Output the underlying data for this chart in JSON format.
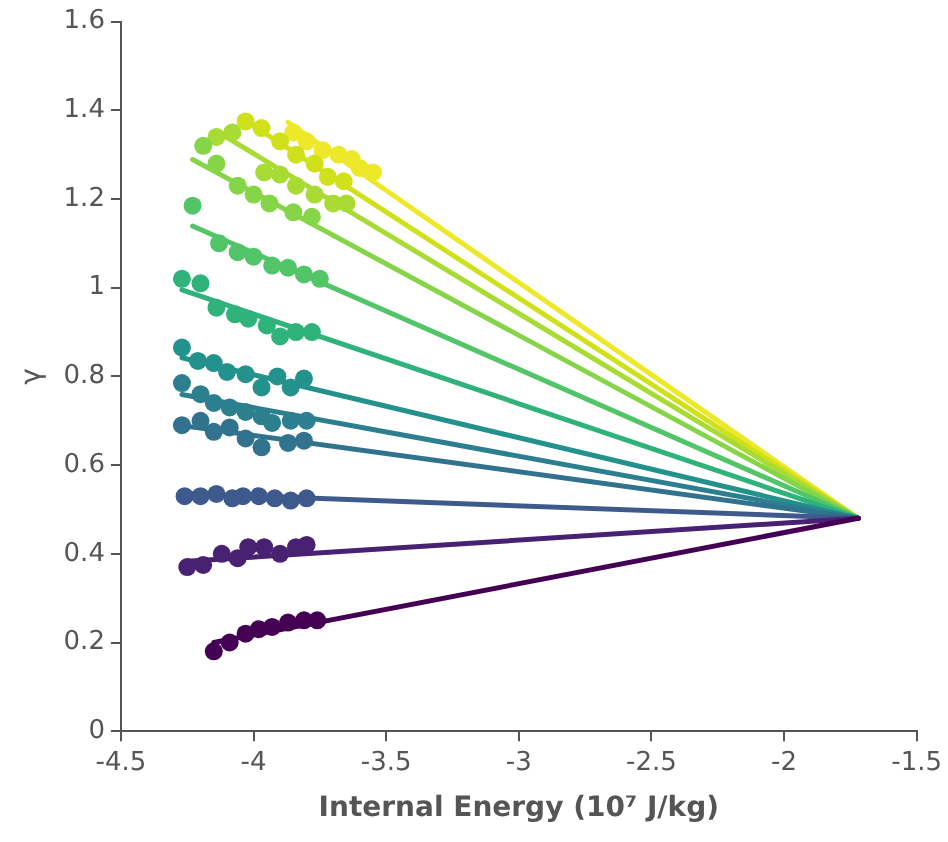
{
  "chart_data": {
    "type": "scatter",
    "xlabel": "Internal Energy (10⁷ J/kg)",
    "ylabel": "γ",
    "xlim": [
      -4.5,
      -1.5
    ],
    "xticks": [
      -4.5,
      -4,
      -3.5,
      -3,
      -2.5,
      -2,
      -1.5
    ],
    "ylim": [
      0,
      1.6
    ],
    "yticks": [
      0,
      0.2,
      0.4,
      0.6,
      0.8,
      1,
      1.2,
      1.4,
      1.6
    ],
    "grid": false,
    "legend": false,
    "marker": "circle",
    "series": [
      {
        "type": "line",
        "marker": "none",
        "color": "#440154",
        "x": [
          -4.15,
          -1.72
        ],
        "values": [
          0.2,
          0.48
        ]
      },
      {
        "type": "line",
        "marker": "none",
        "color": "#482173",
        "x": [
          -4.25,
          -1.72
        ],
        "values": [
          0.383,
          0.48
        ]
      },
      {
        "type": "line",
        "marker": "none",
        "color": "#3e5a8c",
        "x": [
          -4.26,
          -1.72
        ],
        "values": [
          0.536,
          0.48
        ]
      },
      {
        "type": "line",
        "marker": "none",
        "color": "#31738e",
        "x": [
          -4.27,
          -1.72
        ],
        "values": [
          0.689,
          0.48
        ]
      },
      {
        "type": "line",
        "marker": "none",
        "color": "#2b7f8e",
        "x": [
          -4.27,
          -1.72
        ],
        "values": [
          0.759,
          0.48
        ]
      },
      {
        "type": "line",
        "marker": "none",
        "color": "#23918c",
        "x": [
          -4.27,
          -1.72
        ],
        "values": [
          0.842,
          0.48
        ]
      },
      {
        "type": "line",
        "marker": "none",
        "color": "#2fb37b",
        "x": [
          -4.27,
          -1.72
        ],
        "values": [
          0.995,
          0.48
        ]
      },
      {
        "type": "line",
        "marker": "none",
        "color": "#52c569",
        "x": [
          -4.23,
          -1.72
        ],
        "values": [
          1.139,
          0.48
        ]
      },
      {
        "type": "line",
        "marker": "none",
        "color": "#86d549",
        "x": [
          -4.23,
          -1.72
        ],
        "values": [
          1.289,
          0.48
        ]
      },
      {
        "type": "line",
        "marker": "none",
        "color": "#a8db34",
        "x": [
          -4.14,
          -1.72
        ],
        "values": [
          1.353,
          0.48
        ]
      },
      {
        "type": "line",
        "marker": "none",
        "color": "#d0e11c",
        "x": [
          -4.05,
          -1.72
        ],
        "values": [
          1.384,
          0.48
        ]
      },
      {
        "type": "line",
        "marker": "none",
        "color": "#eee82a",
        "x": [
          -3.87,
          -1.72
        ],
        "values": [
          1.373,
          0.48
        ]
      },
      {
        "color": "#440154",
        "x": [
          -4.15,
          -4.09,
          -4.03,
          -3.98,
          -3.93,
          -3.87,
          -3.81,
          -3.76
        ],
        "values": [
          0.18,
          0.2,
          0.22,
          0.23,
          0.235,
          0.245,
          0.25,
          0.25
        ]
      },
      {
        "color": "#482173",
        "x": [
          -4.25,
          -4.19,
          -4.12,
          -4.06,
          -4.02,
          -3.96,
          -3.9,
          -3.84,
          -3.8
        ],
        "values": [
          0.37,
          0.375,
          0.4,
          0.39,
          0.415,
          0.415,
          0.4,
          0.415,
          0.42
        ]
      },
      {
        "color": "#3e5a8c",
        "x": [
          -4.26,
          -4.2,
          -4.14,
          -4.08,
          -4.04,
          -3.98,
          -3.92,
          -3.86,
          -3.8
        ],
        "values": [
          0.53,
          0.53,
          0.535,
          0.525,
          0.53,
          0.53,
          0.525,
          0.52,
          0.525
        ]
      },
      {
        "color": "#31738e",
        "x": [
          -4.27,
          -4.2,
          -4.15,
          -4.09,
          -4.03,
          -3.97,
          -3.87,
          -3.81
        ],
        "values": [
          0.69,
          0.7,
          0.675,
          0.685,
          0.66,
          0.64,
          0.65,
          0.655
        ]
      },
      {
        "color": "#2b7f8e",
        "x": [
          -4.27,
          -4.2,
          -4.15,
          -4.09,
          -4.03,
          -3.97,
          -3.93,
          -3.86,
          -3.8
        ],
        "values": [
          0.785,
          0.76,
          0.74,
          0.73,
          0.72,
          0.71,
          0.695,
          0.7,
          0.7
        ]
      },
      {
        "color": "#23918c",
        "x": [
          -4.27,
          -4.21,
          -4.15,
          -4.1,
          -4.03,
          -3.97,
          -3.91,
          -3.86,
          -3.81
        ],
        "values": [
          0.865,
          0.835,
          0.83,
          0.81,
          0.805,
          0.775,
          0.8,
          0.775,
          0.795
        ]
      },
      {
        "color": "#2fb37b",
        "x": [
          -4.27,
          -4.2,
          -4.14,
          -4.07,
          -4.02,
          -3.95,
          -3.9,
          -3.84,
          -3.78
        ],
        "values": [
          1.02,
          1.01,
          0.955,
          0.94,
          0.93,
          0.915,
          0.89,
          0.9,
          0.9
        ]
      },
      {
        "color": "#52c569",
        "x": [
          -4.23,
          -4.13,
          -4.06,
          -4,
          -3.93,
          -3.87,
          -3.81,
          -3.75
        ],
        "values": [
          1.185,
          1.1,
          1.08,
          1.07,
          1.05,
          1.045,
          1.03,
          1.02
        ]
      },
      {
        "color": "#86d549",
        "x": [
          -4.19,
          -4.14,
          -4.06,
          -4,
          -3.94,
          -3.85,
          -3.78
        ],
        "values": [
          1.32,
          1.28,
          1.23,
          1.21,
          1.19,
          1.17,
          1.16
        ]
      },
      {
        "color": "#a8db34",
        "x": [
          -4.14,
          -4.08,
          -3.96,
          -3.9,
          -3.84,
          -3.77,
          -3.7,
          -3.65
        ],
        "values": [
          1.34,
          1.35,
          1.26,
          1.255,
          1.23,
          1.21,
          1.19,
          1.19
        ]
      },
      {
        "color": "#d0e11c",
        "x": [
          -4.03,
          -3.97,
          -3.9,
          -3.84,
          -3.77,
          -3.72,
          -3.66
        ],
        "values": [
          1.375,
          1.36,
          1.33,
          1.3,
          1.28,
          1.25,
          1.24
        ]
      },
      {
        "color": "#eee82a",
        "x": [
          -3.85,
          -3.8,
          -3.74,
          -3.68,
          -3.63,
          -3.6,
          -3.55
        ],
        "values": [
          1.35,
          1.33,
          1.31,
          1.3,
          1.29,
          1.27,
          1.26
        ]
      }
    ]
  }
}
